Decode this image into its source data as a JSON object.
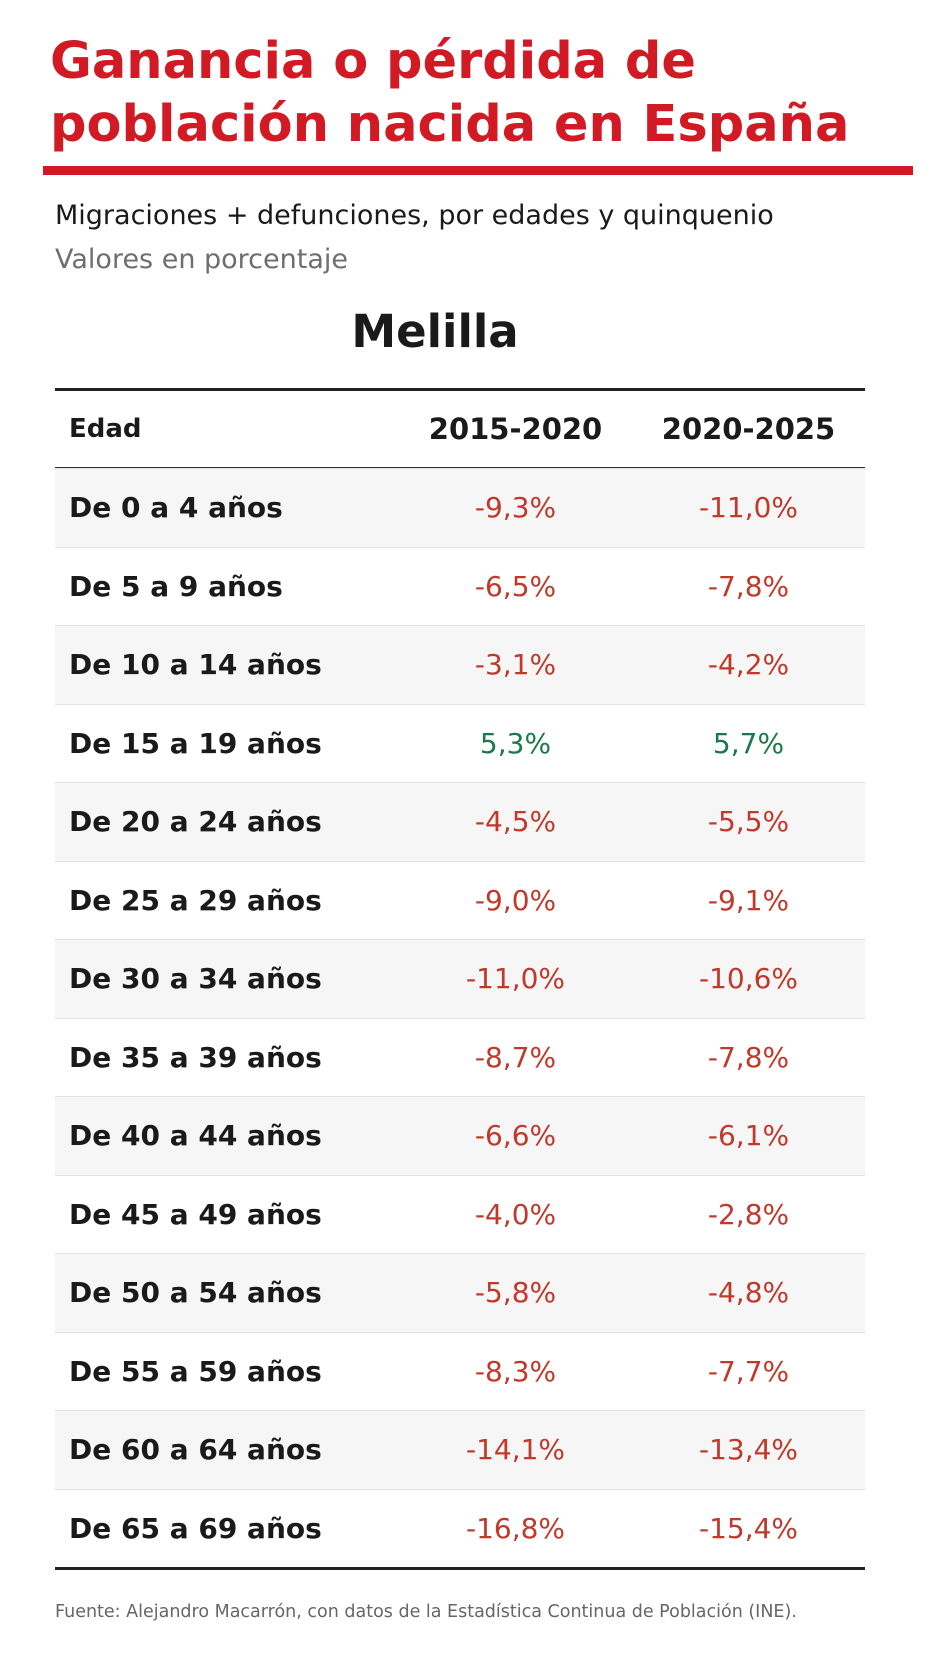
{
  "title": "Ganancia o pérdida de población nacida en España",
  "subtitle": "Migraciones + defunciones, por edades y quinquenio",
  "units": "Valores en porcentaje",
  "region": "Melilla",
  "source": "Fuente: Alejandro Macarrón, con datos de la Estadística Continua de Población (INE).",
  "colors": {
    "title": "#d11a24",
    "negative": "#c0392b",
    "positive": "#1a7a4a",
    "row_shade": "#f6f6f6"
  },
  "chart_data": {
    "type": "table",
    "title": "Melilla",
    "columns": [
      "Edad",
      "2015-2020",
      "2020-2025"
    ],
    "rows": [
      {
        "age": "De 0 a 4 años",
        "v2015_2020": "-9,3%",
        "v2020_2025": "-11,0%"
      },
      {
        "age": "De 5 a 9 años",
        "v2015_2020": "-6,5%",
        "v2020_2025": "-7,8%"
      },
      {
        "age": "De 10 a 14 años",
        "v2015_2020": "-3,1%",
        "v2020_2025": "-4,2%"
      },
      {
        "age": "De 15 a 19 años",
        "v2015_2020": "5,3%",
        "v2020_2025": "5,7%"
      },
      {
        "age": "De 20 a 24 años",
        "v2015_2020": "-4,5%",
        "v2020_2025": "-5,5%"
      },
      {
        "age": "De 25 a 29 años",
        "v2015_2020": "-9,0%",
        "v2020_2025": "-9,1%"
      },
      {
        "age": "De 30 a 34 años",
        "v2015_2020": "-11,0%",
        "v2020_2025": "-10,6%"
      },
      {
        "age": "De 35 a 39 años",
        "v2015_2020": "-8,7%",
        "v2020_2025": "-7,8%"
      },
      {
        "age": "De 40 a 44 años",
        "v2015_2020": "-6,6%",
        "v2020_2025": "-6,1%"
      },
      {
        "age": "De 45 a 49 años",
        "v2015_2020": "-4,0%",
        "v2020_2025": "-2,8%"
      },
      {
        "age": "De 50 a 54 años",
        "v2015_2020": "-5,8%",
        "v2020_2025": "-4,8%"
      },
      {
        "age": "De 55 a 59 años",
        "v2015_2020": "-8,3%",
        "v2020_2025": "-7,7%"
      },
      {
        "age": "De 60 a 64 años",
        "v2015_2020": "-14,1%",
        "v2020_2025": "-13,4%"
      },
      {
        "age": "De 65 a 69 años",
        "v2015_2020": "-16,8%",
        "v2020_2025": "-15,4%"
      }
    ]
  }
}
